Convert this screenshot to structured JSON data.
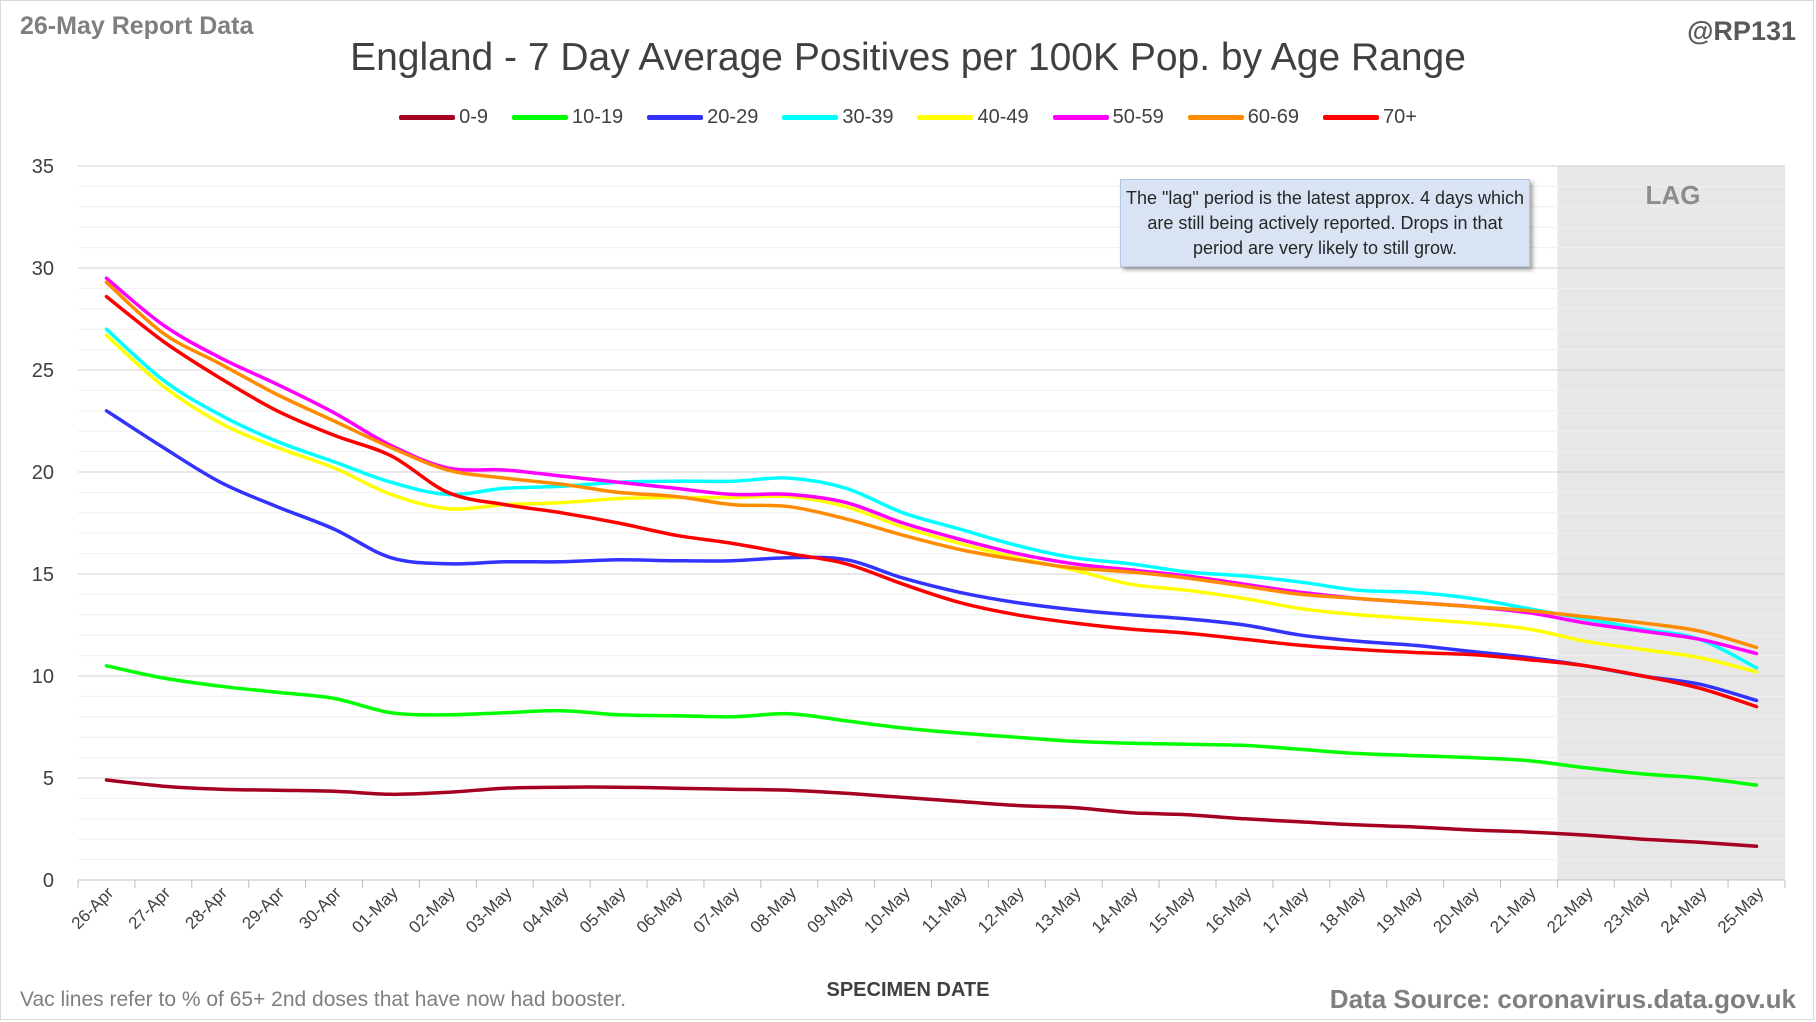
{
  "header": {
    "report_label": "26-May Report Data",
    "handle": "@RP131"
  },
  "footer": {
    "footnote": "Vac lines refer to % of 65+ 2nd doses that have now had booster.",
    "source": "Data Source: coronavirus.data.gov.uk"
  },
  "annotation": {
    "text": "The \"lag\" period is the latest approx. 4 days which are still being actively reported.  Drops in that period are very likely to still grow.",
    "lag_label": "LAG"
  },
  "chart_data": {
    "type": "line",
    "title": "England - 7 Day Average Positives per 100K Pop. by Age Range",
    "xlabel": "SPECIMEN DATE",
    "ylabel": "",
    "ylim": [
      0,
      35
    ],
    "yticks": [
      0,
      5,
      10,
      15,
      20,
      25,
      30,
      35
    ],
    "grid": true,
    "legend_position": "top",
    "lag_start_category": "22-May",
    "categories": [
      "26-Apr",
      "27-Apr",
      "28-Apr",
      "29-Apr",
      "30-Apr",
      "01-May",
      "02-May",
      "03-May",
      "04-May",
      "05-May",
      "06-May",
      "07-May",
      "08-May",
      "09-May",
      "10-May",
      "11-May",
      "12-May",
      "13-May",
      "14-May",
      "15-May",
      "16-May",
      "17-May",
      "18-May",
      "19-May",
      "20-May",
      "21-May",
      "22-May",
      "23-May",
      "24-May",
      "25-May"
    ],
    "series": [
      {
        "name": "0-9",
        "color": "#a50021",
        "values": [
          4.9,
          4.6,
          4.45,
          4.4,
          4.35,
          4.2,
          4.3,
          4.5,
          4.55,
          4.55,
          4.5,
          4.45,
          4.4,
          4.25,
          4.05,
          3.85,
          3.65,
          3.55,
          3.3,
          3.2,
          3.0,
          2.85,
          2.7,
          2.6,
          2.45,
          2.35,
          2.2,
          2.0,
          1.85,
          1.65
        ]
      },
      {
        "name": "10-19",
        "color": "#00ff00",
        "values": [
          10.5,
          9.9,
          9.5,
          9.2,
          8.9,
          8.2,
          8.1,
          8.2,
          8.3,
          8.1,
          8.05,
          8.0,
          8.15,
          7.8,
          7.45,
          7.2,
          7.0,
          6.8,
          6.7,
          6.65,
          6.6,
          6.4,
          6.2,
          6.1,
          6.0,
          5.85,
          5.5,
          5.2,
          5.0,
          4.65
        ]
      },
      {
        "name": "20-29",
        "color": "#3333ff",
        "values": [
          23.0,
          21.2,
          19.5,
          18.3,
          17.2,
          15.8,
          15.5,
          15.6,
          15.6,
          15.7,
          15.65,
          15.65,
          15.8,
          15.7,
          14.8,
          14.1,
          13.6,
          13.25,
          13.0,
          12.8,
          12.5,
          12.0,
          11.7,
          11.5,
          11.2,
          10.9,
          10.5,
          10.0,
          9.6,
          8.8
        ]
      },
      {
        "name": "30-39",
        "color": "#00ffff",
        "values": [
          27.0,
          24.5,
          22.8,
          21.5,
          20.5,
          19.5,
          18.9,
          19.2,
          19.3,
          19.5,
          19.55,
          19.55,
          19.7,
          19.2,
          18.0,
          17.2,
          16.4,
          15.8,
          15.5,
          15.1,
          14.9,
          14.6,
          14.2,
          14.1,
          13.8,
          13.3,
          12.8,
          12.3,
          11.8,
          10.4
        ]
      },
      {
        "name": "40-49",
        "color": "#ffff00",
        "values": [
          26.7,
          24.2,
          22.4,
          21.2,
          20.2,
          18.9,
          18.2,
          18.4,
          18.5,
          18.7,
          18.75,
          18.75,
          18.8,
          18.3,
          17.3,
          16.5,
          15.8,
          15.2,
          14.5,
          14.2,
          13.8,
          13.3,
          13.0,
          12.8,
          12.6,
          12.3,
          11.7,
          11.3,
          10.9,
          10.2
        ]
      },
      {
        "name": "50-59",
        "color": "#ff00ff",
        "values": [
          29.5,
          27.2,
          25.6,
          24.3,
          22.9,
          21.3,
          20.2,
          20.1,
          19.8,
          19.5,
          19.2,
          18.9,
          18.9,
          18.5,
          17.5,
          16.7,
          16.0,
          15.5,
          15.2,
          14.9,
          14.5,
          14.1,
          13.8,
          13.6,
          13.4,
          13.1,
          12.6,
          12.2,
          11.8,
          11.1
        ]
      },
      {
        "name": "60-69",
        "color": "#ff8c00",
        "values": [
          29.3,
          26.8,
          25.3,
          23.8,
          22.5,
          21.2,
          20.1,
          19.7,
          19.4,
          19.0,
          18.8,
          18.4,
          18.3,
          17.7,
          16.9,
          16.2,
          15.7,
          15.3,
          15.1,
          14.8,
          14.4,
          14.0,
          13.8,
          13.6,
          13.4,
          13.2,
          12.9,
          12.6,
          12.2,
          11.4
        ]
      },
      {
        "name": "70+",
        "color": "#ff0000",
        "values": [
          28.6,
          26.4,
          24.6,
          23.0,
          21.8,
          20.8,
          19.0,
          18.4,
          18.0,
          17.5,
          16.9,
          16.5,
          16.0,
          15.5,
          14.5,
          13.6,
          13.0,
          12.6,
          12.3,
          12.1,
          11.8,
          11.5,
          11.3,
          11.15,
          11.05,
          10.8,
          10.5,
          10.0,
          9.4,
          8.5
        ]
      }
    ]
  }
}
